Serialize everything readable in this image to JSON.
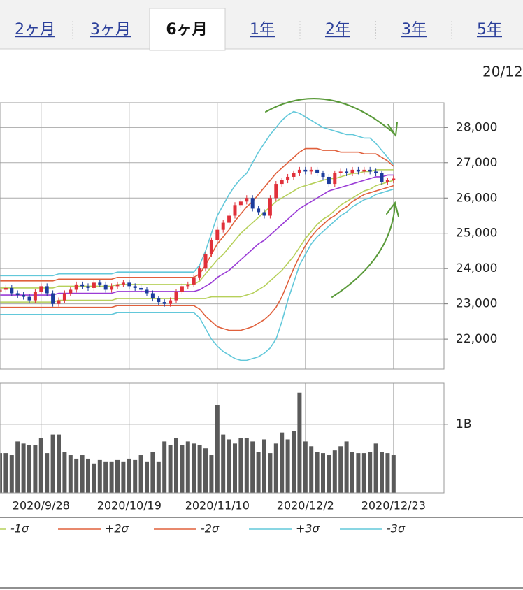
{
  "tabs": [
    "2ヶ月",
    "3ヶ月",
    "6ヶ月",
    "1年",
    "2年",
    "3年",
    "5年"
  ],
  "selected_tab": "6ヶ月",
  "date_label": "20/12",
  "chart_data": {
    "type": "candlestick",
    "categories": [
      null,
      null,
      null,
      null,
      null,
      null,
      null,
      "2020/9/28",
      null,
      null,
      null,
      null,
      null,
      null,
      null,
      null,
      null,
      null,
      null,
      null,
      null,
      null,
      "2020/10/19",
      null,
      null,
      null,
      null,
      null,
      null,
      null,
      null,
      null,
      null,
      null,
      null,
      null,
      null,
      "2020/11/10",
      null,
      null,
      null,
      null,
      null,
      null,
      null,
      null,
      null,
      null,
      null,
      null,
      null,
      null,
      "2020/12/2",
      null,
      null,
      null,
      null,
      null,
      null,
      null,
      null,
      null,
      null,
      null,
      null,
      null,
      null,
      "2020/12/23"
    ],
    "open": [
      23350,
      23400,
      23450,
      23300,
      23250,
      23200,
      23100,
      23350,
      23500,
      23300,
      23000,
      23100,
      23300,
      23400,
      23550,
      23500,
      23450,
      23600,
      23550,
      23400,
      23500,
      23550,
      23600,
      23500,
      23450,
      23400,
      23300,
      23150,
      23050,
      23000,
      23100,
      23350,
      23500,
      23550,
      23750,
      24000,
      24400,
      24800,
      25100,
      25300,
      25500,
      25800,
      25900,
      26000,
      25700,
      25600,
      25500,
      26000,
      26400,
      26500,
      26600,
      26700,
      26800,
      26750,
      26800,
      26700,
      26600,
      26400,
      26700,
      26750,
      26700,
      26800,
      26750,
      26800,
      26750,
      26700,
      26450,
      26500
    ],
    "high": [
      23480,
      23530,
      23530,
      23380,
      23330,
      23280,
      23430,
      23580,
      23580,
      23380,
      23180,
      23380,
      23480,
      23630,
      23630,
      23580,
      23680,
      23680,
      23630,
      23580,
      23630,
      23680,
      23680,
      23580,
      23530,
      23480,
      23380,
      23230,
      23130,
      23180,
      23430,
      23580,
      23630,
      23830,
      24080,
      24480,
      24880,
      25180,
      25380,
      25580,
      25880,
      25980,
      26080,
      26080,
      25780,
      25680,
      26080,
      26480,
      26580,
      26680,
      26780,
      26880,
      26880,
      26880,
      26880,
      26780,
      26680,
      26780,
      26830,
      26830,
      26880,
      26880,
      26880,
      26880,
      26830,
      26780,
      26580,
      26630
    ],
    "low": [
      23270,
      23320,
      23220,
      23170,
      23120,
      23020,
      23020,
      23270,
      23220,
      22920,
      22920,
      23020,
      23220,
      23320,
      23420,
      23370,
      23370,
      23470,
      23320,
      23320,
      23420,
      23470,
      23420,
      23370,
      23320,
      23220,
      23070,
      22970,
      22920,
      22920,
      23020,
      23270,
      23420,
      23470,
      23670,
      23920,
      24320,
      24720,
      25020,
      25220,
      25420,
      25720,
      25820,
      25620,
      25520,
      25420,
      25420,
      25920,
      26320,
      26420,
      26520,
      26620,
      26670,
      26670,
      26620,
      26520,
      26320,
      26320,
      26620,
      26620,
      26620,
      26670,
      26670,
      26670,
      26620,
      26370,
      26370,
      26420
    ],
    "close": [
      23400,
      23450,
      23300,
      23250,
      23200,
      23100,
      23350,
      23500,
      23300,
      23000,
      23100,
      23300,
      23400,
      23550,
      23500,
      23450,
      23600,
      23550,
      23400,
      23500,
      23550,
      23600,
      23500,
      23450,
      23400,
      23300,
      23150,
      23050,
      23000,
      23100,
      23350,
      23500,
      23550,
      23750,
      24000,
      24400,
      24800,
      25100,
      25300,
      25500,
      25800,
      25900,
      26000,
      25700,
      25600,
      25500,
      26000,
      26400,
      26500,
      26600,
      26700,
      26800,
      26750,
      26800,
      26700,
      26600,
      26400,
      26700,
      26750,
      26700,
      26800,
      26750,
      26800,
      26750,
      26700,
      26450,
      26500,
      26550
    ],
    "up_color": "#e0303a",
    "down_color": "#1c3c9c",
    "series": [
      {
        "name": "+3σ",
        "color": "#62c8da",
        "values": [
          23800,
          23800,
          23800,
          23800,
          23800,
          23800,
          23800,
          23800,
          23800,
          23800,
          23850,
          23850,
          23850,
          23850,
          23850,
          23850,
          23850,
          23850,
          23850,
          23850,
          23900,
          23900,
          23900,
          23900,
          23900,
          23900,
          23900,
          23900,
          23900,
          23900,
          23900,
          23900,
          23900,
          23900,
          24100,
          24500,
          25000,
          25500,
          25800,
          26100,
          26350,
          26550,
          26700,
          27000,
          27300,
          27550,
          27800,
          28000,
          28200,
          28350,
          28450,
          28400,
          28300,
          28200,
          28100,
          28000,
          27950,
          27900,
          27850,
          27800,
          27800,
          27750,
          27700,
          27700,
          27550,
          27350,
          27150,
          26950
        ]
      },
      {
        "name": "+2σ",
        "color": "#e0603c",
        "values": [
          23650,
          23650,
          23650,
          23650,
          23650,
          23650,
          23650,
          23650,
          23650,
          23650,
          23700,
          23700,
          23700,
          23700,
          23700,
          23700,
          23700,
          23700,
          23700,
          23700,
          23750,
          23750,
          23750,
          23750,
          23750,
          23750,
          23750,
          23750,
          23750,
          23750,
          23750,
          23750,
          23750,
          23750,
          23850,
          24100,
          24400,
          24700,
          24900,
          25100,
          25350,
          25550,
          25750,
          25900,
          26100,
          26300,
          26500,
          26700,
          26850,
          27000,
          27150,
          27300,
          27400,
          27400,
          27400,
          27350,
          27350,
          27350,
          27300,
          27300,
          27300,
          27300,
          27250,
          27250,
          27250,
          27150,
          27050,
          26900
        ]
      },
      {
        "color": "#b6d05a",
        "values": [
          23450,
          23450,
          23450,
          23450,
          23450,
          23450,
          23450,
          23450,
          23450,
          23450,
          23500,
          23500,
          23500,
          23500,
          23500,
          23500,
          23500,
          23500,
          23500,
          23500,
          23550,
          23550,
          23550,
          23550,
          23550,
          23550,
          23550,
          23550,
          23550,
          23550,
          23550,
          23550,
          23550,
          23550,
          23650,
          23850,
          24050,
          24250,
          24400,
          24600,
          24800,
          25000,
          25150,
          25300,
          25450,
          25600,
          25750,
          25900,
          26000,
          26100,
          26200,
          26300,
          26350,
          26400,
          26450,
          26500,
          26550,
          26550,
          26600,
          26650,
          26700,
          26700,
          26750,
          26750,
          26800,
          26800,
          26800,
          26800
        ]
      },
      {
        "color": "#9a3cd6",
        "values": [
          23250,
          23250,
          23250,
          23250,
          23250,
          23250,
          23250,
          23250,
          23250,
          23250,
          23300,
          23300,
          23300,
          23300,
          23300,
          23300,
          23300,
          23300,
          23300,
          23300,
          23350,
          23350,
          23350,
          23350,
          23350,
          23350,
          23350,
          23350,
          23350,
          23350,
          23350,
          23350,
          23350,
          23350,
          23400,
          23500,
          23600,
          23750,
          23850,
          23950,
          24100,
          24250,
          24400,
          24550,
          24700,
          24800,
          24950,
          25100,
          25250,
          25400,
          25550,
          25700,
          25800,
          25900,
          26000,
          26100,
          26200,
          26250,
          26300,
          26350,
          26400,
          26450,
          26500,
          26550,
          26600,
          26600,
          26650,
          26650
        ]
      },
      {
        "name": "-1σ",
        "color": "#b6d05a",
        "values": [
          23050,
          23050,
          23050,
          23050,
          23050,
          23050,
          23050,
          23050,
          23050,
          23050,
          23100,
          23100,
          23100,
          23100,
          23100,
          23100,
          23100,
          23100,
          23100,
          23100,
          23150,
          23150,
          23150,
          23150,
          23150,
          23150,
          23150,
          23150,
          23150,
          23150,
          23150,
          23150,
          23150,
          23150,
          23150,
          23150,
          23200,
          23200,
          23200,
          23200,
          23200,
          23200,
          23250,
          23300,
          23400,
          23500,
          23650,
          23800,
          23950,
          24150,
          24350,
          24600,
          24850,
          25050,
          25250,
          25400,
          25500,
          25650,
          25800,
          25900,
          26000,
          26100,
          26200,
          26250,
          26350,
          26400,
          26450,
          26500
        ]
      },
      {
        "name": "-2σ",
        "color": "#e0603c",
        "values": [
          22900,
          22900,
          22900,
          22900,
          22900,
          22900,
          22900,
          22900,
          22900,
          22900,
          22900,
          22900,
          22900,
          22900,
          22900,
          22900,
          22900,
          22900,
          22900,
          22900,
          22950,
          22950,
          22950,
          22950,
          22950,
          22950,
          22950,
          22950,
          22950,
          22950,
          22950,
          22950,
          22950,
          22950,
          22850,
          22650,
          22500,
          22350,
          22300,
          22250,
          22250,
          22250,
          22300,
          22350,
          22450,
          22550,
          22700,
          22900,
          23200,
          23600,
          24000,
          24350,
          24650,
          24900,
          25100,
          25250,
          25400,
          25500,
          25650,
          25750,
          25900,
          26000,
          26100,
          26150,
          26200,
          26250,
          26300,
          26350
        ]
      },
      {
        "name": "-3σ",
        "color": "#62c8da",
        "values": [
          22700,
          22700,
          22700,
          22700,
          22700,
          22700,
          22700,
          22700,
          22700,
          22700,
          22700,
          22700,
          22700,
          22700,
          22700,
          22700,
          22700,
          22700,
          22700,
          22700,
          22750,
          22750,
          22750,
          22750,
          22750,
          22750,
          22750,
          22750,
          22750,
          22750,
          22750,
          22750,
          22750,
          22750,
          22600,
          22300,
          22000,
          21800,
          21650,
          21550,
          21450,
          21400,
          21400,
          21450,
          21500,
          21600,
          21750,
          22000,
          22500,
          23100,
          23600,
          24100,
          24400,
          24700,
          24900,
          25050,
          25200,
          25350,
          25500,
          25600,
          25750,
          25850,
          25950,
          26000,
          26100,
          26150,
          26200,
          26250
        ]
      }
    ],
    "legend_order": [
      "-1σ",
      "+2σ",
      "-2σ",
      "+3σ",
      "-3σ"
    ],
    "ylim": [
      21150,
      28700
    ],
    "yticks": [
      {
        "value": 22000,
        "label": "22,000"
      },
      {
        "value": 23000,
        "label": "23,000"
      },
      {
        "value": 24000,
        "label": "24,000"
      },
      {
        "value": 25000,
        "label": "25,000"
      },
      {
        "value": 26000,
        "label": "26,000"
      },
      {
        "value": 27000,
        "label": "27,000"
      },
      {
        "value": 28000,
        "label": "28,000"
      }
    ],
    "grid": true,
    "volume": {
      "color": "#5a5a5a",
      "values": [
        580000000,
        580000000,
        550000000,
        750000000,
        720000000,
        700000000,
        700000000,
        800000000,
        580000000,
        850000000,
        850000000,
        600000000,
        550000000,
        500000000,
        550000000,
        500000000,
        420000000,
        480000000,
        450000000,
        450000000,
        480000000,
        450000000,
        500000000,
        480000000,
        550000000,
        450000000,
        600000000,
        450000000,
        750000000,
        700000000,
        800000000,
        700000000,
        750000000,
        720000000,
        700000000,
        650000000,
        550000000,
        1280000000,
        850000000,
        780000000,
        720000000,
        800000000,
        800000000,
        750000000,
        600000000,
        780000000,
        580000000,
        720000000,
        880000000,
        780000000,
        900000000,
        1460000000,
        750000000,
        680000000,
        600000000,
        580000000,
        550000000,
        620000000,
        680000000,
        750000000,
        600000000,
        580000000,
        580000000,
        600000000,
        720000000,
        600000000,
        580000000,
        550000000
      ],
      "ylim": [
        0,
        1600000000
      ],
      "yticks": [
        {
          "value": 1000000000,
          "label": "1B"
        }
      ]
    }
  }
}
